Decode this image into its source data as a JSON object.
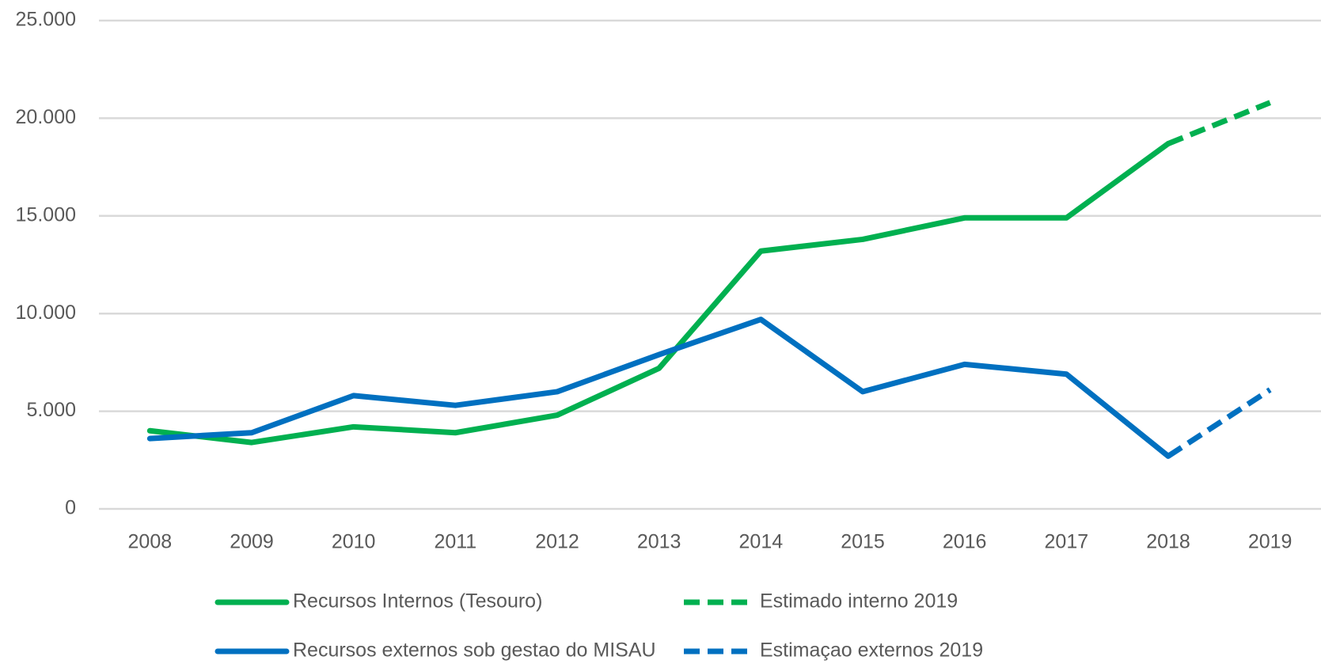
{
  "chart_data": {
    "type": "line",
    "categories": [
      "2008",
      "2009",
      "2010",
      "2011",
      "2012",
      "2013",
      "2014",
      "2015",
      "2016",
      "2017",
      "2018",
      "2019"
    ],
    "series": [
      {
        "name": "Recursos Internos (Tesouro)",
        "color": "#00b050",
        "dashed": false,
        "values": [
          4000,
          3400,
          4200,
          3900,
          4800,
          7200,
          13200,
          13800,
          14900,
          14900,
          18700,
          null
        ]
      },
      {
        "name": "Estimado interno 2019",
        "color": "#00b050",
        "dashed": true,
        "values": [
          null,
          null,
          null,
          null,
          null,
          null,
          null,
          null,
          null,
          null,
          18700,
          20800
        ]
      },
      {
        "name": "Recursos externos sob gestao do MISAU",
        "color": "#0070c0",
        "dashed": false,
        "values": [
          3600,
          3900,
          5800,
          5300,
          6000,
          7900,
          9700,
          6000,
          7400,
          6900,
          2700,
          null
        ]
      },
      {
        "name": "Estimaçao externos 2019",
        "color": "#0070c0",
        "dashed": true,
        "values": [
          null,
          null,
          null,
          null,
          null,
          null,
          null,
          null,
          null,
          null,
          2700,
          6100
        ]
      }
    ],
    "ylim": [
      0,
      25000
    ],
    "yticks": [
      0,
      {
        "value": 5000,
        "label": "5.000"
      },
      {
        "value": 10000,
        "label": "10.000"
      },
      {
        "value": 15000,
        "label": "15.000"
      },
      {
        "value": 20000,
        "label": "20.000"
      },
      {
        "value": 25000,
        "label": "25.000"
      }
    ],
    "grid": true,
    "legend": "bottom"
  }
}
